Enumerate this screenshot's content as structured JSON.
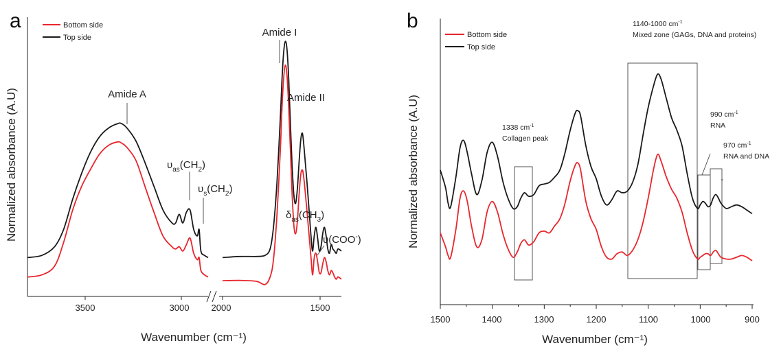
{
  "colors": {
    "bottom": "#e8262d",
    "top": "#1a1a1a"
  },
  "chart_data": [
    {
      "panel": "a",
      "type": "line",
      "ylabel": "Normalized absorbance (A.U)",
      "xlabel": "Wavenumber (cm⁻¹)",
      "x_ticks": [
        "3500",
        "3000",
        "2000",
        "1500"
      ],
      "axis_break": "2950-2000",
      "legend": [
        "Bottom side",
        "Top side"
      ],
      "annotations": {
        "amideA": "Amide A",
        "amideI": "Amide I",
        "amideII": "Amide II",
        "vas": {
          "sym": "υ",
          "sub": "as",
          "mid": "(CH",
          "sub2": "2",
          "end": ")"
        },
        "vs": {
          "sym": "υ",
          "sub": "s",
          "mid": "(CH",
          "sub2": "2",
          "end": ")"
        },
        "das": {
          "sym": "δ",
          "sub": "as",
          "mid": "(CH",
          "sub2": "3",
          "end": ")"
        },
        "coo": {
          "text": "υ(COO",
          "sup": "-",
          "end": ")"
        }
      },
      "series": [
        {
          "name": "Bottom side",
          "left_x": [
            3800,
            3720,
            3650,
            3600,
            3550,
            3500,
            3450,
            3400,
            3350,
            3300,
            3280,
            3250,
            3200,
            3150,
            3100,
            3050,
            3000,
            2980,
            2960,
            2940,
            2920,
            2900,
            2880,
            2860,
            2850,
            2840,
            2820,
            2800
          ],
          "left_y": [
            0.02,
            0.03,
            0.07,
            0.18,
            0.33,
            0.44,
            0.52,
            0.59,
            0.63,
            0.645,
            0.64,
            0.62,
            0.56,
            0.44,
            0.32,
            0.21,
            0.16,
            0.15,
            0.16,
            0.14,
            0.17,
            0.2,
            0.13,
            0.1,
            0.11,
            0.05,
            0.03,
            0.02
          ],
          "right_x": [
            2000,
            1900,
            1800,
            1750,
            1720,
            1700,
            1680,
            1660,
            1650,
            1640,
            1630,
            1620,
            1610,
            1600,
            1590,
            1580,
            1570,
            1560,
            1550,
            1540,
            1530,
            1520,
            1500,
            1480,
            1470,
            1460,
            1450,
            1440,
            1430,
            1420,
            1410,
            1400,
            1390,
            1380,
            1370,
            1360,
            1350,
            1340,
            1330,
            1320,
            1300
          ],
          "right_y": [
            0.003,
            0.004,
            0.0,
            -0.015,
            0.02,
            0.1,
            0.3,
            0.6,
            0.8,
            0.94,
            1.0,
            0.95,
            0.8,
            0.6,
            0.4,
            0.26,
            0.22,
            0.27,
            0.39,
            0.49,
            0.515,
            0.47,
            0.3,
            0.12,
            0.03,
            0.11,
            0.13,
            0.09,
            0.04,
            0.04,
            0.08,
            0.11,
            0.09,
            0.05,
            0.03,
            0.05,
            0.04,
            0.02,
            0.01,
            0.02,
            0.01
          ]
        },
        {
          "name": "Top side",
          "left_x": [
            3800,
            3720,
            3650,
            3600,
            3550,
            3500,
            3450,
            3400,
            3350,
            3300,
            3280,
            3250,
            3200,
            3150,
            3100,
            3050,
            3000,
            2980,
            2960,
            2940,
            2920,
            2900,
            2880,
            2860,
            2850,
            2840,
            2820,
            2800
          ],
          "left_y": [
            0.11,
            0.12,
            0.16,
            0.24,
            0.38,
            0.5,
            0.6,
            0.67,
            0.71,
            0.73,
            0.73,
            0.71,
            0.65,
            0.55,
            0.44,
            0.33,
            0.27,
            0.27,
            0.31,
            0.27,
            0.32,
            0.33,
            0.24,
            0.21,
            0.24,
            0.14,
            0.12,
            0.11
          ],
          "right_x": [
            2000,
            1900,
            1800,
            1750,
            1720,
            1700,
            1680,
            1660,
            1650,
            1640,
            1630,
            1620,
            1610,
            1600,
            1590,
            1580,
            1570,
            1560,
            1550,
            1540,
            1530,
            1520,
            1500,
            1480,
            1470,
            1460,
            1450,
            1440,
            1430,
            1420,
            1410,
            1400,
            1390,
            1380,
            1370,
            1360,
            1350,
            1340,
            1330,
            1320,
            1300
          ],
          "right_y": [
            0.11,
            0.115,
            0.115,
            0.12,
            0.15,
            0.25,
            0.45,
            0.75,
            0.93,
            1.06,
            1.11,
            1.07,
            0.93,
            0.72,
            0.53,
            0.4,
            0.36,
            0.42,
            0.54,
            0.65,
            0.685,
            0.62,
            0.43,
            0.22,
            0.14,
            0.21,
            0.25,
            0.2,
            0.14,
            0.16,
            0.22,
            0.25,
            0.21,
            0.15,
            0.13,
            0.17,
            0.15,
            0.14,
            0.13,
            0.15,
            0.14
          ]
        }
      ]
    },
    {
      "panel": "b",
      "type": "line",
      "ylabel": "Normalized absorbance (A.U)",
      "xlabel": "Wavenumber (cm⁻¹)",
      "xlim": [
        1500,
        900
      ],
      "x_ticks": [
        "1500",
        "1400",
        "1300",
        "1200",
        "1100",
        "1000",
        "900"
      ],
      "legend": [
        "Bottom side",
        "Top side"
      ],
      "annotations": {
        "mixed1": {
          "text": "1140-1000 cm",
          "sup": "-1"
        },
        "mixed2": "Mixed zone (GAGs, DNA and proteins)",
        "coll1": {
          "text": "1338 cm",
          "sup": "-1"
        },
        "coll2": "Collagen peak",
        "rna1": {
          "text": "990 cm",
          "sup": "-1"
        },
        "rna2": "RNA",
        "rd1": {
          "text": "970 cm",
          "sup": "-1"
        },
        "rd2": "RNA and DNA"
      },
      "series": [
        {
          "name": "Bottom side",
          "x": [
            1500,
            1490,
            1485,
            1480,
            1470,
            1462,
            1455,
            1448,
            1440,
            1430,
            1420,
            1410,
            1400,
            1390,
            1380,
            1370,
            1360,
            1352,
            1345,
            1338,
            1330,
            1320,
            1310,
            1300,
            1290,
            1280,
            1270,
            1260,
            1250,
            1240,
            1235,
            1230,
            1220,
            1210,
            1200,
            1190,
            1180,
            1170,
            1160,
            1150,
            1140,
            1130,
            1120,
            1110,
            1100,
            1090,
            1082,
            1075,
            1065,
            1055,
            1045,
            1035,
            1025,
            1015,
            1005,
            1000,
            995,
            990,
            985,
            980,
            975,
            970,
            965,
            960,
            950,
            940,
            930,
            920,
            910,
            900
          ],
          "y": [
            0.16,
            0.08,
            0.03,
            0.02,
            0.18,
            0.36,
            0.4,
            0.34,
            0.2,
            0.08,
            0.12,
            0.28,
            0.34,
            0.28,
            0.16,
            0.07,
            0.02,
            0.05,
            0.1,
            0.12,
            0.09,
            0.11,
            0.16,
            0.17,
            0.16,
            0.2,
            0.24,
            0.33,
            0.46,
            0.55,
            0.56,
            0.52,
            0.34,
            0.24,
            0.18,
            0.08,
            0.02,
            0.01,
            0.04,
            0.05,
            0.03,
            0.06,
            0.12,
            0.22,
            0.36,
            0.52,
            0.61,
            0.57,
            0.48,
            0.41,
            0.36,
            0.28,
            0.16,
            0.06,
            0.01,
            0.02,
            0.03,
            0.04,
            0.04,
            0.03,
            0.05,
            0.06,
            0.04,
            0.02,
            0.01,
            0.01,
            0.02,
            0.03,
            0.02,
            0.0
          ]
        },
        {
          "name": "Top side",
          "x": [
            1500,
            1490,
            1485,
            1480,
            1470,
            1462,
            1455,
            1448,
            1440,
            1430,
            1420,
            1410,
            1400,
            1390,
            1380,
            1370,
            1360,
            1352,
            1345,
            1338,
            1330,
            1320,
            1310,
            1300,
            1290,
            1280,
            1270,
            1260,
            1250,
            1240,
            1235,
            1230,
            1220,
            1210,
            1200,
            1190,
            1180,
            1170,
            1160,
            1150,
            1140,
            1130,
            1120,
            1110,
            1100,
            1090,
            1082,
            1075,
            1065,
            1055,
            1045,
            1035,
            1025,
            1015,
            1005,
            1000,
            995,
            990,
            985,
            980,
            975,
            970,
            965,
            960,
            950,
            940,
            930,
            920,
            910,
            900
          ],
          "y": [
            0.52,
            0.42,
            0.33,
            0.31,
            0.48,
            0.65,
            0.69,
            0.62,
            0.5,
            0.38,
            0.46,
            0.62,
            0.68,
            0.6,
            0.46,
            0.36,
            0.3,
            0.31,
            0.36,
            0.39,
            0.37,
            0.38,
            0.43,
            0.44,
            0.45,
            0.48,
            0.52,
            0.62,
            0.75,
            0.85,
            0.86,
            0.83,
            0.66,
            0.54,
            0.47,
            0.37,
            0.32,
            0.35,
            0.4,
            0.39,
            0.4,
            0.45,
            0.55,
            0.72,
            0.88,
            1.0,
            1.07,
            1.04,
            0.93,
            0.82,
            0.75,
            0.66,
            0.5,
            0.36,
            0.3,
            0.32,
            0.34,
            0.33,
            0.31,
            0.32,
            0.36,
            0.38,
            0.36,
            0.33,
            0.3,
            0.31,
            0.32,
            0.31,
            0.29,
            0.27
          ]
        }
      ]
    }
  ]
}
